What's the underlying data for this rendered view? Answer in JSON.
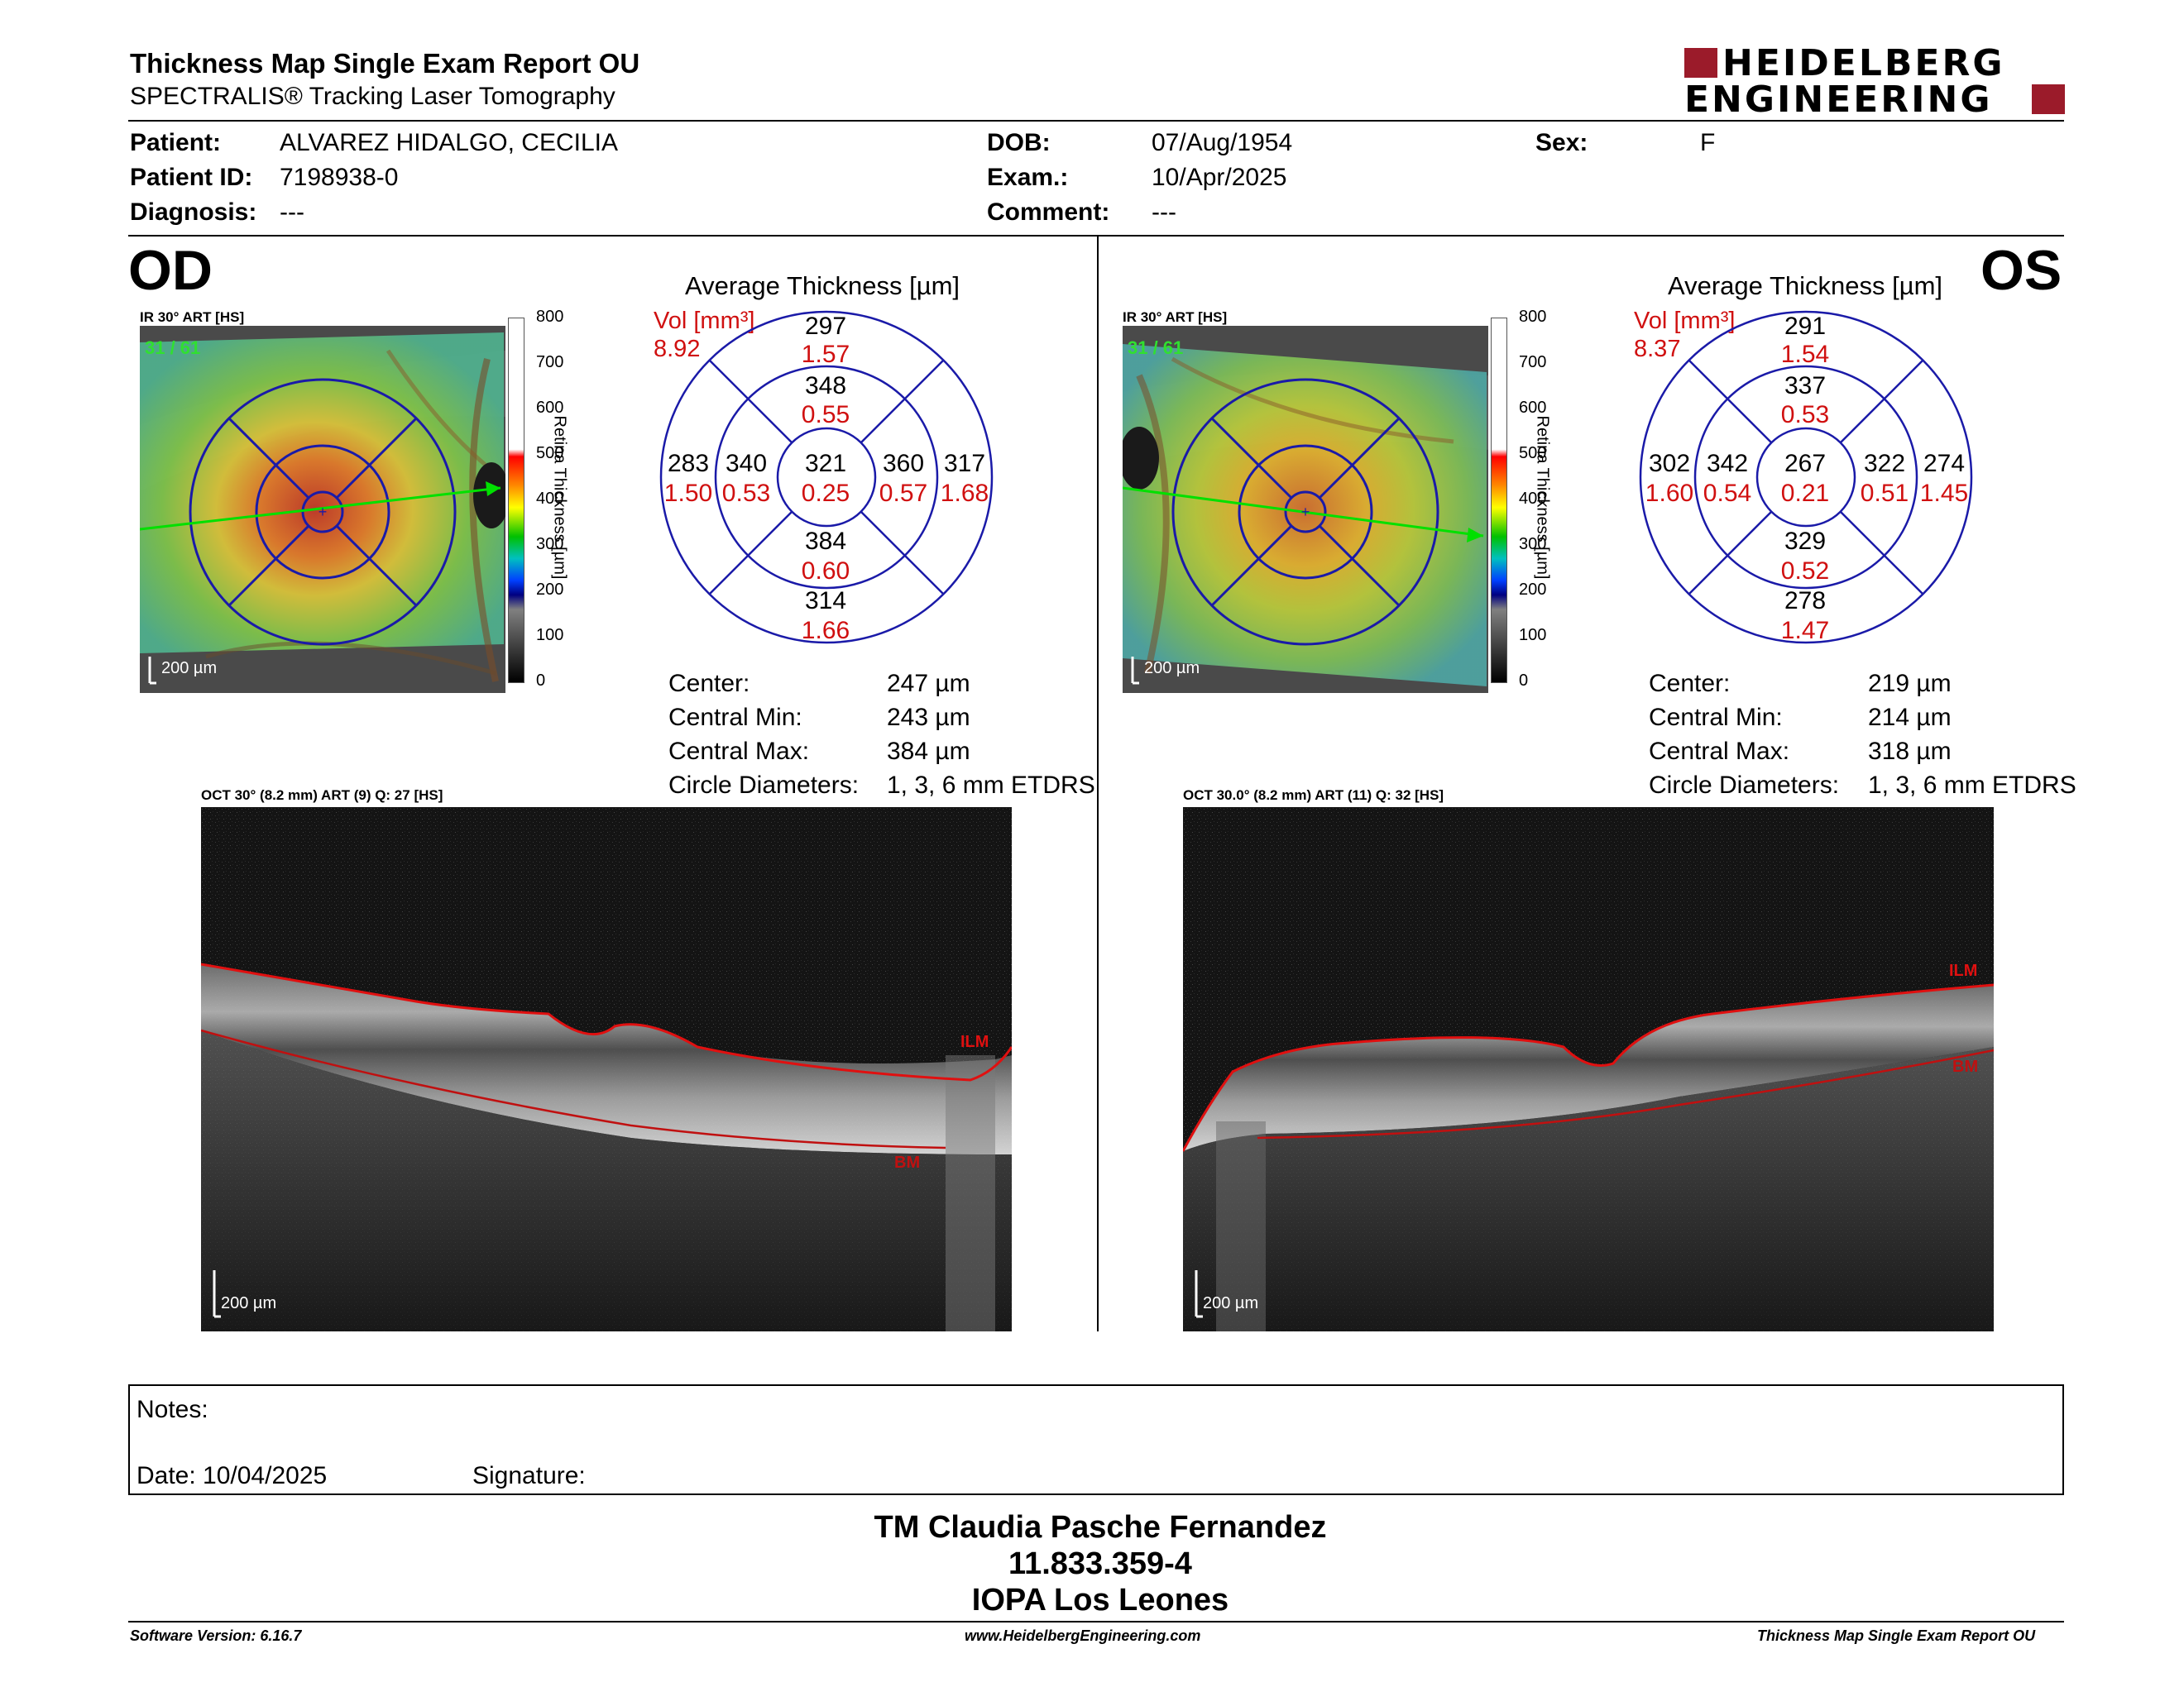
{
  "report": {
    "title": "Thickness Map Single Exam Report OU",
    "subtitle": "SPECTRALIS® Tracking Laser Tomography"
  },
  "brand": {
    "line1": "HEIDELBERG",
    "line2": "ENGINEERING",
    "color": "#9b1b2a"
  },
  "patient": {
    "patient_label": "Patient:",
    "patient": "ALVAREZ HIDALGO, CECILIA",
    "id_label": "Patient ID:",
    "id": "7198938-0",
    "diagnosis_label": "Diagnosis:",
    "diagnosis": "---",
    "dob_label": "DOB:",
    "dob": "07/Aug/1954",
    "exam_label": "Exam.:",
    "exam": "10/Apr/2025",
    "comment_label": "Comment:",
    "comment": "---",
    "sex_label": "Sex:",
    "sex": "F"
  },
  "scale": {
    "ticks": [
      "800",
      "700",
      "600",
      "500",
      "400",
      "300",
      "200",
      "100",
      "0"
    ],
    "label": "Retina Thickness [µm]"
  },
  "od": {
    "eye": "OD",
    "ir_label": "IR 30° ART [HS]",
    "frames": "31 / 61",
    "ir_scalebar": "200 µm",
    "avg_title": "Average Thickness [µm]",
    "vol_label": "Vol [mm³]",
    "vol_total": "8.92",
    "grid": {
      "center": [
        "321",
        "0.25"
      ],
      "inner_sup": [
        "348",
        "0.55"
      ],
      "inner_inf": [
        "384",
        "0.60"
      ],
      "inner_nasal_left": [
        "340",
        "0.53"
      ],
      "inner_right": [
        "360",
        "0.57"
      ],
      "outer_sup": [
        "297",
        "1.57"
      ],
      "outer_inf": [
        "314",
        "1.66"
      ],
      "outer_left": [
        "283",
        "1.50"
      ],
      "outer_right": [
        "317",
        "1.68"
      ]
    },
    "stats": [
      {
        "label": "Center:",
        "value": "247 µm"
      },
      {
        "label": "Central Min:",
        "value": "243 µm"
      },
      {
        "label": "Central Max:",
        "value": "384 µm"
      },
      {
        "label": "Circle Diameters:",
        "value": "1, 3, 6 mm ETDRS"
      }
    ],
    "oct_label": "OCT 30° (8.2 mm) ART (9) Q: 27 [HS]",
    "ilm": "ILM",
    "bm": "BM",
    "oct_scalebar": "200 µm"
  },
  "os": {
    "eye": "OS",
    "ir_label": "IR 30° ART [HS]",
    "frames": "31 / 61",
    "ir_scalebar": "200 µm",
    "avg_title": "Average Thickness [µm]",
    "vol_label": "Vol [mm³]",
    "vol_total": "8.37",
    "grid": {
      "center": [
        "267",
        "0.21"
      ],
      "inner_sup": [
        "337",
        "0.53"
      ],
      "inner_inf": [
        "329",
        "0.52"
      ],
      "inner_nasal_left": [
        "342",
        "0.54"
      ],
      "inner_right": [
        "322",
        "0.51"
      ],
      "outer_sup": [
        "291",
        "1.54"
      ],
      "outer_inf": [
        "278",
        "1.47"
      ],
      "outer_left": [
        "302",
        "1.60"
      ],
      "outer_right": [
        "274",
        "1.45"
      ]
    },
    "stats": [
      {
        "label": "Center:",
        "value": "219 µm"
      },
      {
        "label": "Central Min:",
        "value": "214 µm"
      },
      {
        "label": "Central Max:",
        "value": "318 µm"
      },
      {
        "label": "Circle Diameters:",
        "value": "1, 3, 6 mm ETDRS"
      }
    ],
    "oct_label": "OCT 30.0° (8.2 mm) ART (11) Q: 32 [HS]",
    "ilm": "ILM",
    "bm": "BM",
    "oct_scalebar": "200 µm"
  },
  "notes": {
    "notes_label": "Notes:",
    "date_label": "Date: 10/04/2025",
    "signature_label": "Signature:"
  },
  "stamp": {
    "name": "TM Claudia Pasche Fernandez",
    "rut": "11.833.359-4",
    "place": "IOPA Los Leones"
  },
  "footer": {
    "software": "Software Version: 6.16.7",
    "website": "www.HeidelbergEngineering.com",
    "report": "Thickness Map Single Exam Report OU"
  }
}
